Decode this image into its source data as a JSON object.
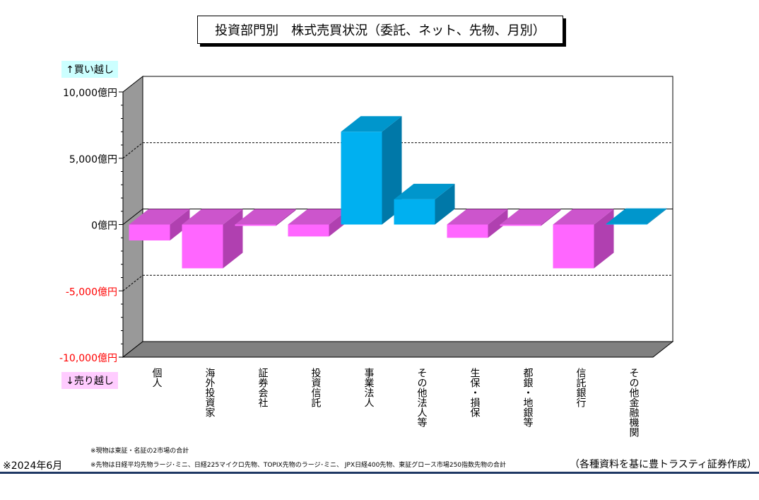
{
  "title": "投資部門別　株式売買状況（委託、ネット、先物、月別）",
  "buy_label": "↑買い越し",
  "sell_label": "↓売り越し",
  "notes": [
    "※現物は東証・名証の2市場の合計",
    "※先物は日経平均先物ラージ･ミニ、日経225マイクロ先物、TOPIX先物のラージ･ミニ、 JPX日経400先物、東証グロース市場250指数先物の合計"
  ],
  "date_note": "※2024年6月",
  "credit": "（各種資料を基に豊トラスティ証券作成）",
  "colors": {
    "positive_front": "#00b0f0",
    "positive_top": "#0096cc",
    "positive_side": "#0078a8",
    "negative_front": "#ff66ff",
    "negative_top": "#cc55cc",
    "negative_side": "#b040b0",
    "wall": "#999999",
    "floor": "#808080",
    "negative_tick": "#ff0000"
  },
  "chart_data": {
    "type": "bar",
    "categories": [
      "個人",
      "海外投資家",
      "証券会社",
      "投資信託",
      "事業法人",
      "その他法人等",
      "生保・損保",
      "都銀・地銀等",
      "信託銀行",
      "その他金融機関"
    ],
    "values": [
      -1200,
      -3300,
      -100,
      -900,
      7000,
      1900,
      -1000,
      -100,
      -3300,
      50
    ],
    "ylim": [
      -10000,
      10000
    ],
    "yticks": [
      10000,
      5000,
      0,
      -5000,
      -10000
    ],
    "ytick_labels": [
      "10,000億円",
      "5,000億円",
      "0億円",
      "-5,000億円",
      "-10,000億円"
    ],
    "grid": true
  }
}
